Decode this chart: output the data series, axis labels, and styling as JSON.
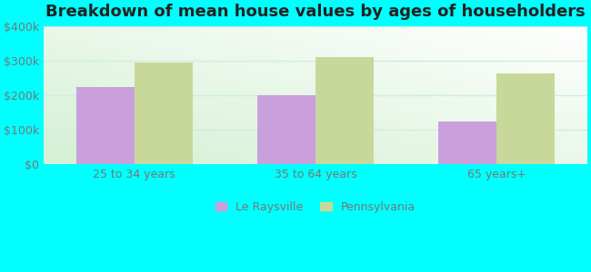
{
  "title": "Breakdown of mean house values by ages of householders",
  "categories": [
    "25 to 34 years",
    "35 to 64 years",
    "65 years+"
  ],
  "le_raysville": [
    225000,
    200000,
    125000
  ],
  "pennsylvania": [
    295000,
    310000,
    265000
  ],
  "bar_color_le": "#c9a0dc",
  "bar_color_pa": "#c8d89a",
  "ylim": [
    0,
    400000
  ],
  "yticks": [
    0,
    100000,
    200000,
    300000,
    400000
  ],
  "ytick_labels": [
    "$0",
    "$100k",
    "$200k",
    "$300k",
    "$400k"
  ],
  "background_outer": "#00ffff",
  "legend_le": "Le Raysville",
  "legend_pa": "Pennsylvania",
  "title_fontsize": 13,
  "tick_fontsize": 9,
  "legend_fontsize": 9,
  "bar_width": 0.32,
  "grid_color": "#d0ede0",
  "tick_color": "#777777"
}
